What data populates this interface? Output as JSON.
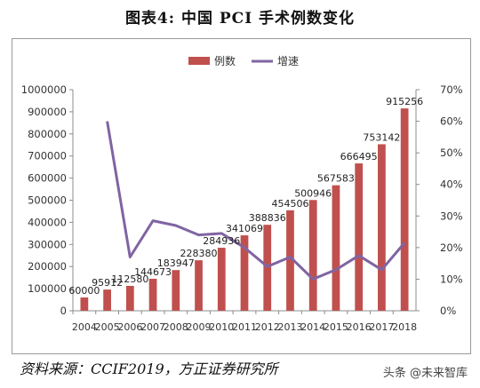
{
  "figure_title": "图表4:   中国 PCI 手术例数变化",
  "source": "资料来源：CCIF2019，方正证券研究所",
  "watermark": "头条 @未来智库",
  "chart_data": {
    "type": "bar",
    "categories": [
      "2004",
      "2005",
      "2006",
      "2007",
      "2008",
      "2009",
      "2010",
      "2011",
      "2012",
      "2013",
      "2014",
      "2015",
      "2016",
      "2017",
      "2018"
    ],
    "series": [
      {
        "name": "例数",
        "type": "bar",
        "axis": "left",
        "color": "#c0504d",
        "values": [
          60000,
          95912,
          112580,
          144673,
          183947,
          228380,
          284936,
          341069,
          388836,
          454506,
          500946,
          567583,
          666495,
          753142,
          915256
        ]
      },
      {
        "name": "增速",
        "type": "line",
        "axis": "right",
        "color": "#8064a2",
        "values": [
          null,
          0.6,
          0.17,
          0.285,
          0.27,
          0.24,
          0.245,
          0.2,
          0.14,
          0.17,
          0.1,
          0.13,
          0.175,
          0.13,
          0.215
        ]
      }
    ],
    "y_left": {
      "min": 0,
      "max": 1000000,
      "step": 100000,
      "ticks": [
        "0",
        "100000",
        "200000",
        "300000",
        "400000",
        "500000",
        "600000",
        "700000",
        "800000",
        "900000",
        "1000000"
      ]
    },
    "y_right": {
      "min": 0,
      "max": 0.7,
      "step": 0.1,
      "ticks": [
        "0%",
        "10%",
        "20%",
        "30%",
        "40%",
        "50%",
        "60%",
        "70%"
      ]
    },
    "legend_position": "top-center",
    "grid": false
  }
}
